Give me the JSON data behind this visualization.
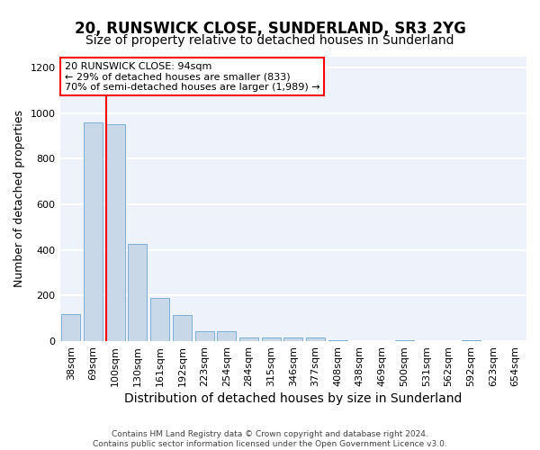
{
  "title1": "20, RUNSWICK CLOSE, SUNDERLAND, SR3 2YG",
  "title2": "Size of property relative to detached houses in Sunderland",
  "xlabel": "Distribution of detached houses by size in Sunderland",
  "ylabel": "Number of detached properties",
  "footnote": "Contains HM Land Registry data © Crown copyright and database right 2024.\nContains public sector information licensed under the Open Government Licence v3.0.",
  "categories": [
    "38sqm",
    "69sqm",
    "100sqm",
    "130sqm",
    "161sqm",
    "192sqm",
    "223sqm",
    "254sqm",
    "284sqm",
    "315sqm",
    "346sqm",
    "377sqm",
    "408sqm",
    "438sqm",
    "469sqm",
    "500sqm",
    "531sqm",
    "562sqm",
    "592sqm",
    "623sqm",
    "654sqm"
  ],
  "values": [
    120,
    960,
    950,
    425,
    190,
    115,
    45,
    45,
    18,
    15,
    15,
    18,
    5,
    0,
    0,
    5,
    0,
    0,
    5,
    0,
    0
  ],
  "bar_color": "#c8d8e8",
  "bar_edge_color": "#7aafd4",
  "property_line_label": "20 RUNSWICK CLOSE: 94sqm",
  "annotation_line1": "← 29% of detached houses are smaller (833)",
  "annotation_line2": "70% of semi-detached houses are larger (1,989) →",
  "annotation_box_color": "white",
  "annotation_box_edge_color": "red",
  "vline_color": "red",
  "vline_x_index": 2,
  "ylim": [
    0,
    1250
  ],
  "yticks": [
    0,
    200,
    400,
    600,
    800,
    1000,
    1200
  ],
  "background_color": "#eef2fb",
  "grid_color": "white",
  "title1_fontsize": 12,
  "title2_fontsize": 10,
  "xlabel_fontsize": 10,
  "ylabel_fontsize": 9,
  "tick_fontsize": 8,
  "annotation_fontsize": 8,
  "footnote_fontsize": 6.5
}
